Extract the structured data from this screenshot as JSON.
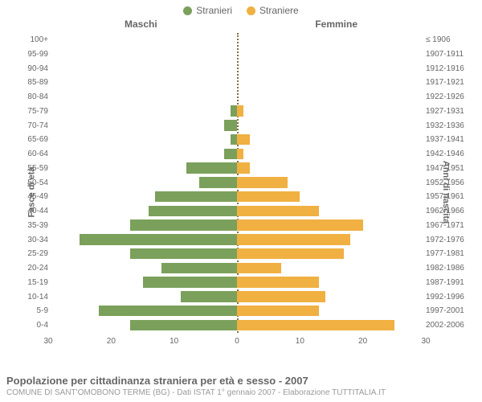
{
  "legend": {
    "male_label": "Stranieri",
    "female_label": "Straniere"
  },
  "headers": {
    "male": "Maschi",
    "female": "Femmine"
  },
  "axis_titles": {
    "left": "Fasce di età",
    "right": "Anni di nascita"
  },
  "colors": {
    "male": "#7ba05b",
    "female": "#f0b042",
    "background": "#ffffff",
    "text": "#666666",
    "subtext": "#999999",
    "center_line": "#807040"
  },
  "chart": {
    "type": "population-pyramid",
    "x_max": 30,
    "x_ticks": [
      30,
      20,
      10,
      0,
      10,
      20,
      30
    ],
    "rows": [
      {
        "age": "100+",
        "birth": "≤ 1906",
        "m": 0,
        "f": 0
      },
      {
        "age": "95-99",
        "birth": "1907-1911",
        "m": 0,
        "f": 0
      },
      {
        "age": "90-94",
        "birth": "1912-1916",
        "m": 0,
        "f": 0
      },
      {
        "age": "85-89",
        "birth": "1917-1921",
        "m": 0,
        "f": 0
      },
      {
        "age": "80-84",
        "birth": "1922-1926",
        "m": 0,
        "f": 0
      },
      {
        "age": "75-79",
        "birth": "1927-1931",
        "m": 1,
        "f": 1
      },
      {
        "age": "70-74",
        "birth": "1932-1936",
        "m": 2,
        "f": 0
      },
      {
        "age": "65-69",
        "birth": "1937-1941",
        "m": 1,
        "f": 2
      },
      {
        "age": "60-64",
        "birth": "1942-1946",
        "m": 2,
        "f": 1
      },
      {
        "age": "55-59",
        "birth": "1947-1951",
        "m": 8,
        "f": 2
      },
      {
        "age": "50-54",
        "birth": "1952-1956",
        "m": 6,
        "f": 8
      },
      {
        "age": "45-49",
        "birth": "1957-1961",
        "m": 13,
        "f": 10
      },
      {
        "age": "40-44",
        "birth": "1962-1966",
        "m": 14,
        "f": 13
      },
      {
        "age": "35-39",
        "birth": "1967-1971",
        "m": 17,
        "f": 20
      },
      {
        "age": "30-34",
        "birth": "1972-1976",
        "m": 25,
        "f": 18
      },
      {
        "age": "25-29",
        "birth": "1977-1981",
        "m": 17,
        "f": 17
      },
      {
        "age": "20-24",
        "birth": "1982-1986",
        "m": 12,
        "f": 7
      },
      {
        "age": "15-19",
        "birth": "1987-1991",
        "m": 15,
        "f": 13
      },
      {
        "age": "10-14",
        "birth": "1992-1996",
        "m": 9,
        "f": 14
      },
      {
        "age": "5-9",
        "birth": "1997-2001",
        "m": 22,
        "f": 13
      },
      {
        "age": "0-4",
        "birth": "2002-2006",
        "m": 17,
        "f": 25
      }
    ]
  },
  "footer": {
    "title": "Popolazione per cittadinanza straniera per età e sesso - 2007",
    "subtitle": "COMUNE DI SANT'OMOBONO TERME (BG) - Dati ISTAT 1° gennaio 2007 - Elaborazione TUTTITALIA.IT"
  }
}
